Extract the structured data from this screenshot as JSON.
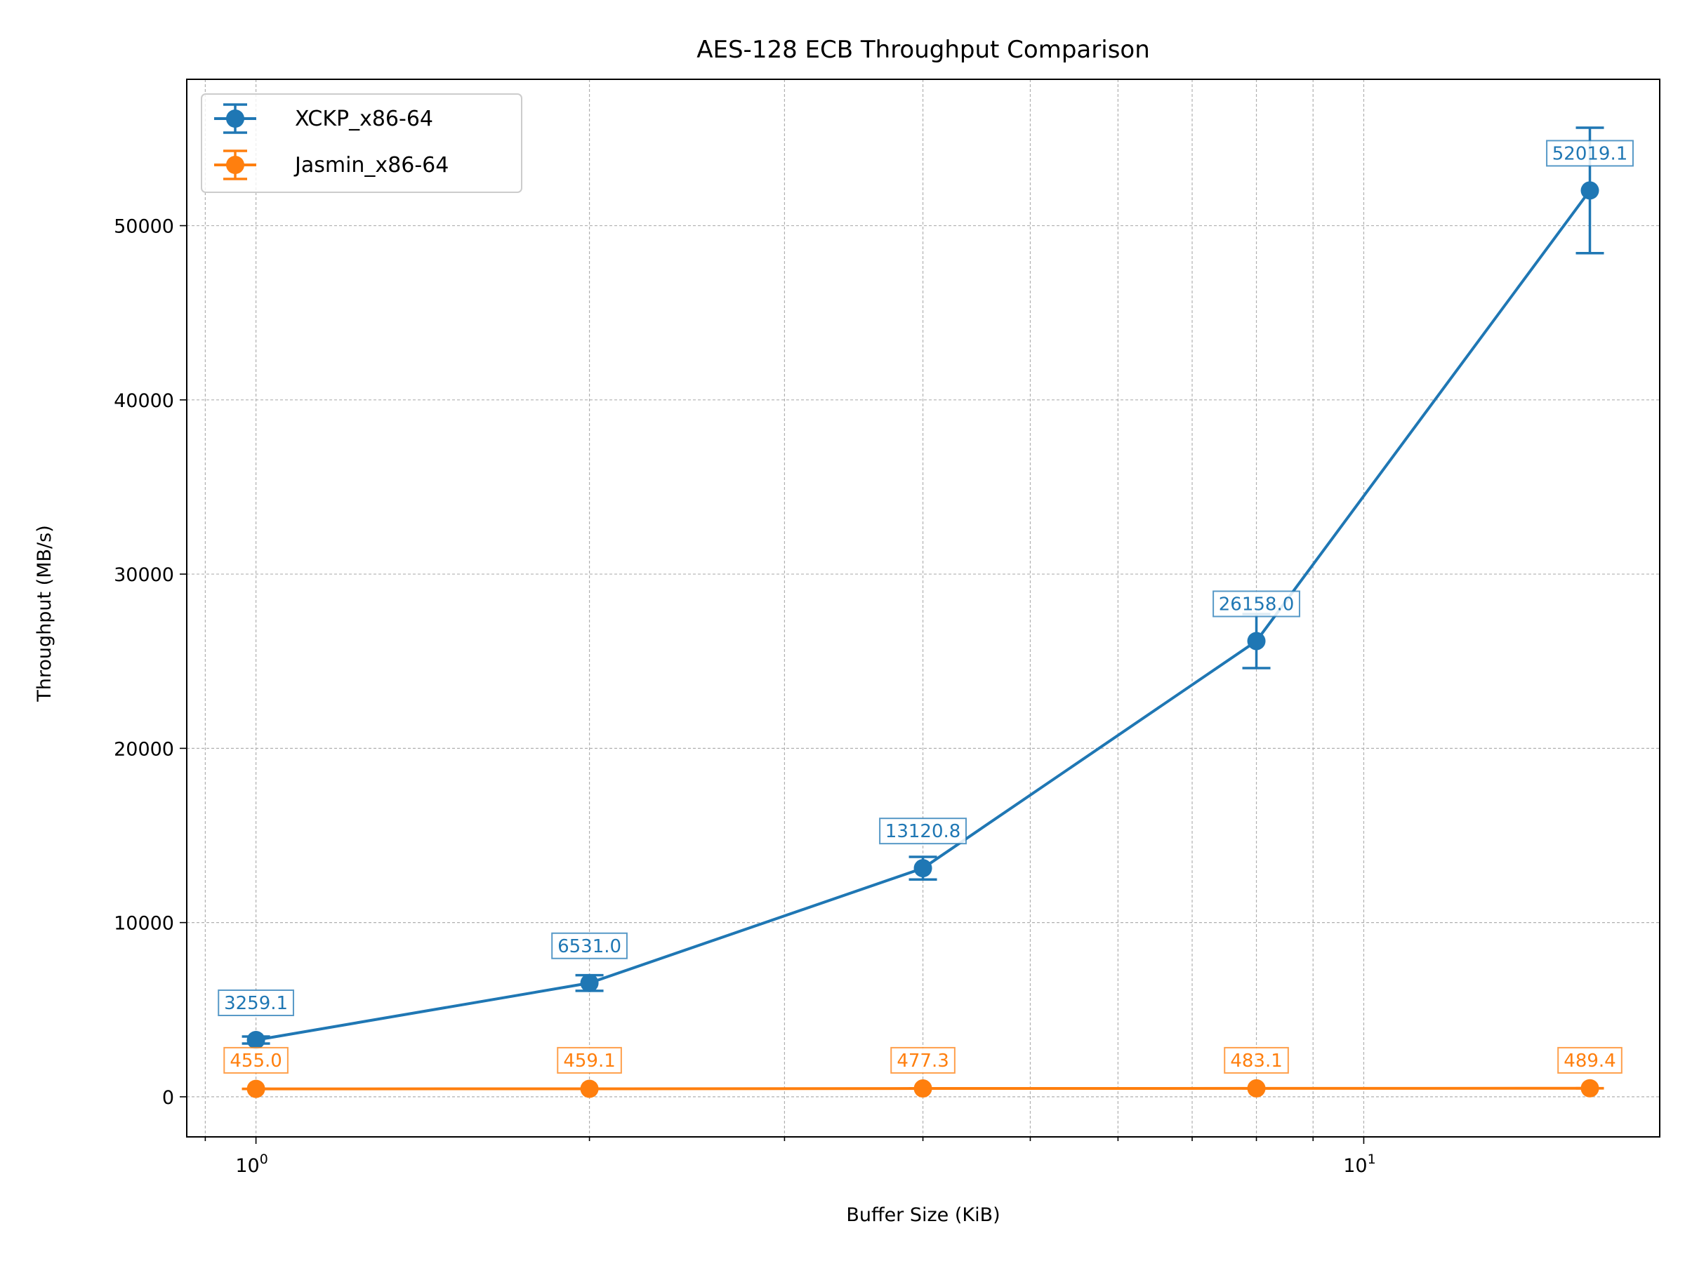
{
  "chart_data": {
    "type": "line",
    "title": "AES-128 ECB Throughput Comparison",
    "xlabel": "Buffer Size (KiB)",
    "ylabel": "Throughput (MB/s)",
    "xscale": "log",
    "xlim": [
      0.866,
      18.5
    ],
    "ylim": [
      -2300,
      58400
    ],
    "x": [
      1,
      2,
      4,
      8,
      16
    ],
    "x_ticks": [
      {
        "value": 1,
        "base": "10",
        "exp": "0"
      },
      {
        "value": 10,
        "base": "10",
        "exp": "1"
      }
    ],
    "y_ticks": [
      {
        "value": 0,
        "label": "0"
      },
      {
        "value": 10000,
        "label": "10000"
      },
      {
        "value": 20000,
        "label": "20000"
      },
      {
        "value": 30000,
        "label": "30000"
      },
      {
        "value": 40000,
        "label": "40000"
      },
      {
        "value": 50000,
        "label": "50000"
      }
    ],
    "grid": true,
    "legend_position": "upper-left",
    "series": [
      {
        "name": "XCKP_x86-64",
        "color": "#1f77b4",
        "values": [
          3259.1,
          6531.0,
          13120.8,
          26158.0,
          52019.1
        ],
        "errors": [
          200,
          450,
          650,
          1550,
          3600
        ],
        "value_labels": [
          "3259.1",
          "6531.0",
          "13120.8",
          "26158.0",
          "52019.1"
        ]
      },
      {
        "name": "Jasmin_x86-64",
        "color": "#ff7f0e",
        "values": [
          455.0,
          459.1,
          477.3,
          483.1,
          489.4
        ],
        "errors": [
          5,
          5,
          5,
          5,
          5
        ],
        "value_labels": [
          "455.0",
          "459.1",
          "477.3",
          "483.1",
          "489.4"
        ]
      }
    ]
  }
}
